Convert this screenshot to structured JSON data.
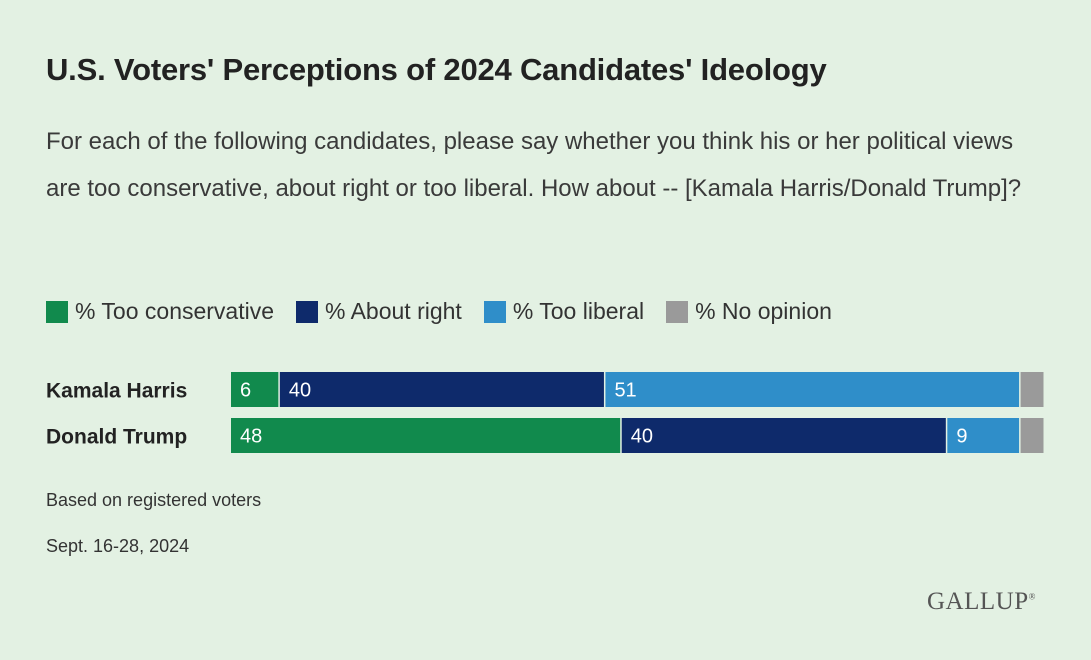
{
  "colors": {
    "too_conservative": "#118a4d",
    "about_right": "#0e2a6b",
    "too_liberal": "#2f8ec9",
    "no_opinion": "#9a9a9a"
  },
  "chart_data": {
    "type": "bar",
    "orientation": "horizontal",
    "stacked": true,
    "title": "U.S. Voters' Perceptions of 2024 Candidates' Ideology",
    "subtitle": "For each of the following candidates, please say whether you think his or her political views are too conservative, about right or too liberal. How about -- [Kamala Harris/Donald Trump]?",
    "categories": [
      "Kamala Harris",
      "Donald Trump"
    ],
    "series": [
      {
        "name": "% Too conservative",
        "key": "too_conservative",
        "values": [
          6,
          48
        ]
      },
      {
        "name": "% About right",
        "key": "about_right",
        "values": [
          40,
          40
        ]
      },
      {
        "name": "% Too liberal",
        "key": "too_liberal",
        "values": [
          51,
          9
        ]
      },
      {
        "name": "% No opinion",
        "key": "no_opinion",
        "values": [
          3,
          3
        ]
      }
    ],
    "labeled_series": [
      "too_conservative",
      "about_right",
      "too_liberal"
    ],
    "xlim": [
      0,
      100
    ],
    "legend_position": "top-left",
    "grid": false
  },
  "footnotes": {
    "basis": "Based on registered voters",
    "dates": "Sept. 16-28, 2024"
  },
  "brand": "GALLUP"
}
